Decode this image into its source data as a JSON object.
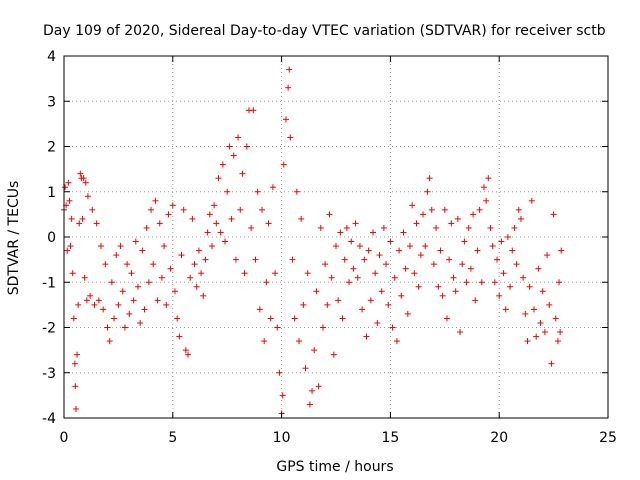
{
  "chart_data": {
    "type": "scatter",
    "title": "Day 109 of 2020, Sidereal Day-to-day VTEC variation (SDTVAR) for receiver sctb",
    "xlabel": "GPS time / hours",
    "ylabel": "SDTVAR / TECUs",
    "xlim": [
      0,
      25
    ],
    "ylim": [
      -4,
      4
    ],
    "xticks": [
      0,
      5,
      10,
      15,
      20,
      25
    ],
    "yticks": [
      -4,
      -3,
      -2,
      -1,
      0,
      1,
      2,
      3,
      4
    ],
    "grid": true,
    "marker": "+",
    "color": "#ff0000",
    "series": [
      {
        "name": "SDTVAR",
        "points": [
          [
            0.0,
            0.6
          ],
          [
            0.05,
            1.1
          ],
          [
            0.1,
            0.7
          ],
          [
            0.15,
            -0.3
          ],
          [
            0.2,
            1.2
          ],
          [
            0.25,
            0.8
          ],
          [
            0.3,
            -0.2
          ],
          [
            0.35,
            0.4
          ],
          [
            0.4,
            -0.8
          ],
          [
            0.45,
            -1.8
          ],
          [
            0.5,
            -2.8
          ],
          [
            0.52,
            -3.3
          ],
          [
            0.55,
            -3.8
          ],
          [
            0.6,
            -2.6
          ],
          [
            0.65,
            -1.5
          ],
          [
            0.7,
            0.3
          ],
          [
            0.75,
            1.4
          ],
          [
            0.8,
            1.3
          ],
          [
            0.85,
            0.4
          ],
          [
            0.9,
            1.3
          ],
          [
            0.95,
            -0.9
          ],
          [
            1.0,
            1.2
          ],
          [
            1.05,
            -1.4
          ],
          [
            1.1,
            0.9
          ],
          [
            1.2,
            -1.3
          ],
          [
            1.3,
            0.6
          ],
          [
            1.4,
            -1.5
          ],
          [
            1.5,
            0.3
          ],
          [
            1.6,
            -1.4
          ],
          [
            1.7,
            -0.2
          ],
          [
            1.8,
            -1.6
          ],
          [
            1.9,
            -0.6
          ],
          [
            2.0,
            -2.0
          ],
          [
            2.1,
            -2.3
          ],
          [
            2.2,
            -1.0
          ],
          [
            2.3,
            -1.8
          ],
          [
            2.4,
            -0.4
          ],
          [
            2.5,
            -1.5
          ],
          [
            2.6,
            -0.2
          ],
          [
            2.7,
            -1.2
          ],
          [
            2.8,
            -2.0
          ],
          [
            2.9,
            -0.6
          ],
          [
            3.0,
            -1.7
          ],
          [
            3.1,
            -0.8
          ],
          [
            3.2,
            -1.4
          ],
          [
            3.3,
            -0.1
          ],
          [
            3.4,
            -1.1
          ],
          [
            3.5,
            -1.9
          ],
          [
            3.6,
            -0.3
          ],
          [
            3.7,
            -1.6
          ],
          [
            3.8,
            0.2
          ],
          [
            3.9,
            -1.0
          ],
          [
            4.0,
            0.6
          ],
          [
            4.1,
            -0.6
          ],
          [
            4.2,
            0.8
          ],
          [
            4.3,
            -1.4
          ],
          [
            4.4,
            0.3
          ],
          [
            4.5,
            -0.9
          ],
          [
            4.6,
            -0.2
          ],
          [
            4.7,
            -1.5
          ],
          [
            4.8,
            0.5
          ],
          [
            4.9,
            -0.7
          ],
          [
            5.0,
            0.7
          ],
          [
            5.1,
            -1.2
          ],
          [
            5.2,
            -1.8
          ],
          [
            5.3,
            -2.2
          ],
          [
            5.4,
            -0.4
          ],
          [
            5.5,
            0.6
          ],
          [
            5.6,
            -2.5
          ],
          [
            5.7,
            -2.6
          ],
          [
            5.8,
            -0.9
          ],
          [
            5.9,
            0.4
          ],
          [
            6.0,
            -0.6
          ],
          [
            6.1,
            -1.1
          ],
          [
            6.2,
            -0.3
          ],
          [
            6.3,
            -0.8
          ],
          [
            6.4,
            -1.3
          ],
          [
            6.5,
            -0.5
          ],
          [
            6.6,
            0.1
          ],
          [
            6.7,
            0.5
          ],
          [
            6.8,
            -0.2
          ],
          [
            6.9,
            0.7
          ],
          [
            7.0,
            0.3
          ],
          [
            7.1,
            1.3
          ],
          [
            7.2,
            0.1
          ],
          [
            7.3,
            1.6
          ],
          [
            7.4,
            -0.1
          ],
          [
            7.5,
            1.0
          ],
          [
            7.6,
            2.0
          ],
          [
            7.7,
            0.4
          ],
          [
            7.8,
            1.8
          ],
          [
            7.9,
            -0.5
          ],
          [
            8.0,
            2.2
          ],
          [
            8.1,
            0.6
          ],
          [
            8.2,
            1.4
          ],
          [
            8.3,
            -0.8
          ],
          [
            8.4,
            2.0
          ],
          [
            8.5,
            2.8
          ],
          [
            8.6,
            0.2
          ],
          [
            8.7,
            2.8
          ],
          [
            8.8,
            -0.5
          ],
          [
            8.9,
            1.0
          ],
          [
            9.0,
            -1.6
          ],
          [
            9.1,
            0.6
          ],
          [
            9.2,
            -2.3
          ],
          [
            9.3,
            -1.0
          ],
          [
            9.4,
            0.3
          ],
          [
            9.5,
            -1.8
          ],
          [
            9.6,
            1.1
          ],
          [
            9.7,
            -0.8
          ],
          [
            9.8,
            -2.0
          ],
          [
            9.9,
            -3.0
          ],
          [
            10.0,
            -3.9
          ],
          [
            10.05,
            -3.5
          ],
          [
            10.1,
            1.6
          ],
          [
            10.2,
            2.6
          ],
          [
            10.3,
            3.3
          ],
          [
            10.35,
            3.7
          ],
          [
            10.4,
            2.2
          ],
          [
            10.5,
            -0.5
          ],
          [
            10.6,
            -1.8
          ],
          [
            10.7,
            1.0
          ],
          [
            10.8,
            -2.3
          ],
          [
            10.9,
            0.4
          ],
          [
            11.0,
            -1.5
          ],
          [
            11.1,
            -2.9
          ],
          [
            11.2,
            -0.8
          ],
          [
            11.3,
            -3.7
          ],
          [
            11.4,
            -3.4
          ],
          [
            11.5,
            -2.5
          ],
          [
            11.6,
            -1.2
          ],
          [
            11.7,
            -3.3
          ],
          [
            11.8,
            0.2
          ],
          [
            11.9,
            -2.0
          ],
          [
            12.0,
            -0.6
          ],
          [
            12.1,
            -1.5
          ],
          [
            12.2,
            0.5
          ],
          [
            12.3,
            -0.9
          ],
          [
            12.4,
            -2.6
          ],
          [
            12.5,
            -0.2
          ],
          [
            12.6,
            -1.4
          ],
          [
            12.7,
            0.1
          ],
          [
            12.8,
            -1.8
          ],
          [
            12.9,
            -0.5
          ],
          [
            13.0,
            0.2
          ],
          [
            13.1,
            -1.0
          ],
          [
            13.2,
            -0.1
          ],
          [
            13.3,
            -0.7
          ],
          [
            13.4,
            0.3
          ],
          [
            13.5,
            -0.9
          ],
          [
            13.6,
            -0.2
          ],
          [
            13.7,
            -1.6
          ],
          [
            13.8,
            -0.5
          ],
          [
            13.9,
            -2.2
          ],
          [
            14.0,
            -0.3
          ],
          [
            14.1,
            -1.4
          ],
          [
            14.2,
            0.1
          ],
          [
            14.3,
            -0.8
          ],
          [
            14.4,
            -1.9
          ],
          [
            14.5,
            -0.4
          ],
          [
            14.6,
            -1.2
          ],
          [
            14.7,
            0.2
          ],
          [
            14.8,
            -0.6
          ],
          [
            14.9,
            -1.5
          ],
          [
            15.0,
            -0.1
          ],
          [
            15.1,
            -2.0
          ],
          [
            15.2,
            -0.9
          ],
          [
            15.3,
            -2.3
          ],
          [
            15.4,
            -0.3
          ],
          [
            15.5,
            -1.3
          ],
          [
            15.6,
            0.1
          ],
          [
            15.7,
            -0.7
          ],
          [
            15.8,
            -1.7
          ],
          [
            15.9,
            -0.2
          ],
          [
            16.0,
            0.7
          ],
          [
            16.1,
            -0.8
          ],
          [
            16.2,
            0.3
          ],
          [
            16.3,
            -1.1
          ],
          [
            16.4,
            -0.4
          ],
          [
            16.5,
            0.5
          ],
          [
            16.6,
            -0.2
          ],
          [
            16.7,
            1.0
          ],
          [
            16.8,
            1.3
          ],
          [
            16.9,
            0.6
          ],
          [
            17.0,
            -0.6
          ],
          [
            17.1,
            0.2
          ],
          [
            17.2,
            -1.1
          ],
          [
            17.3,
            -0.3
          ],
          [
            17.4,
            -1.3
          ],
          [
            17.5,
            0.6
          ],
          [
            17.6,
            -1.8
          ],
          [
            17.7,
            -0.5
          ],
          [
            17.8,
            0.3
          ],
          [
            17.9,
            -0.9
          ],
          [
            18.0,
            -1.2
          ],
          [
            18.1,
            0.4
          ],
          [
            18.2,
            -2.1
          ],
          [
            18.3,
            -0.6
          ],
          [
            18.4,
            -0.1
          ],
          [
            18.5,
            -1.0
          ],
          [
            18.6,
            0.2
          ],
          [
            18.7,
            -0.7
          ],
          [
            18.8,
            0.5
          ],
          [
            18.9,
            -1.4
          ],
          [
            19.0,
            -0.3
          ],
          [
            19.1,
            0.6
          ],
          [
            19.2,
            -1.0
          ],
          [
            19.3,
            1.1
          ],
          [
            19.4,
            0.8
          ],
          [
            19.5,
            1.3
          ],
          [
            19.6,
            0.2
          ],
          [
            19.7,
            -0.2
          ],
          [
            19.8,
            -1.0
          ],
          [
            19.9,
            -0.5
          ],
          [
            20.0,
            -1.3
          ],
          [
            20.1,
            -0.1
          ],
          [
            20.2,
            -0.8
          ],
          [
            20.3,
            -1.6
          ],
          [
            20.4,
            0.0
          ],
          [
            20.5,
            -1.1
          ],
          [
            20.6,
            -0.3
          ],
          [
            20.7,
            0.2
          ],
          [
            20.8,
            -0.6
          ],
          [
            20.9,
            0.6
          ],
          [
            21.0,
            0.4
          ],
          [
            21.1,
            -0.9
          ],
          [
            21.2,
            -1.7
          ],
          [
            21.3,
            -2.3
          ],
          [
            21.4,
            -1.1
          ],
          [
            21.5,
            0.8
          ],
          [
            21.6,
            -1.6
          ],
          [
            21.7,
            -2.2
          ],
          [
            21.8,
            -0.7
          ],
          [
            21.9,
            -1.9
          ],
          [
            22.0,
            -1.2
          ],
          [
            22.1,
            -2.1
          ],
          [
            22.2,
            -0.4
          ],
          [
            22.3,
            -1.5
          ],
          [
            22.4,
            -2.8
          ],
          [
            22.5,
            0.5
          ],
          [
            22.6,
            -1.8
          ],
          [
            22.7,
            -2.3
          ],
          [
            22.75,
            -1.0
          ],
          [
            22.8,
            -2.1
          ],
          [
            22.85,
            -0.3
          ]
        ]
      }
    ]
  }
}
